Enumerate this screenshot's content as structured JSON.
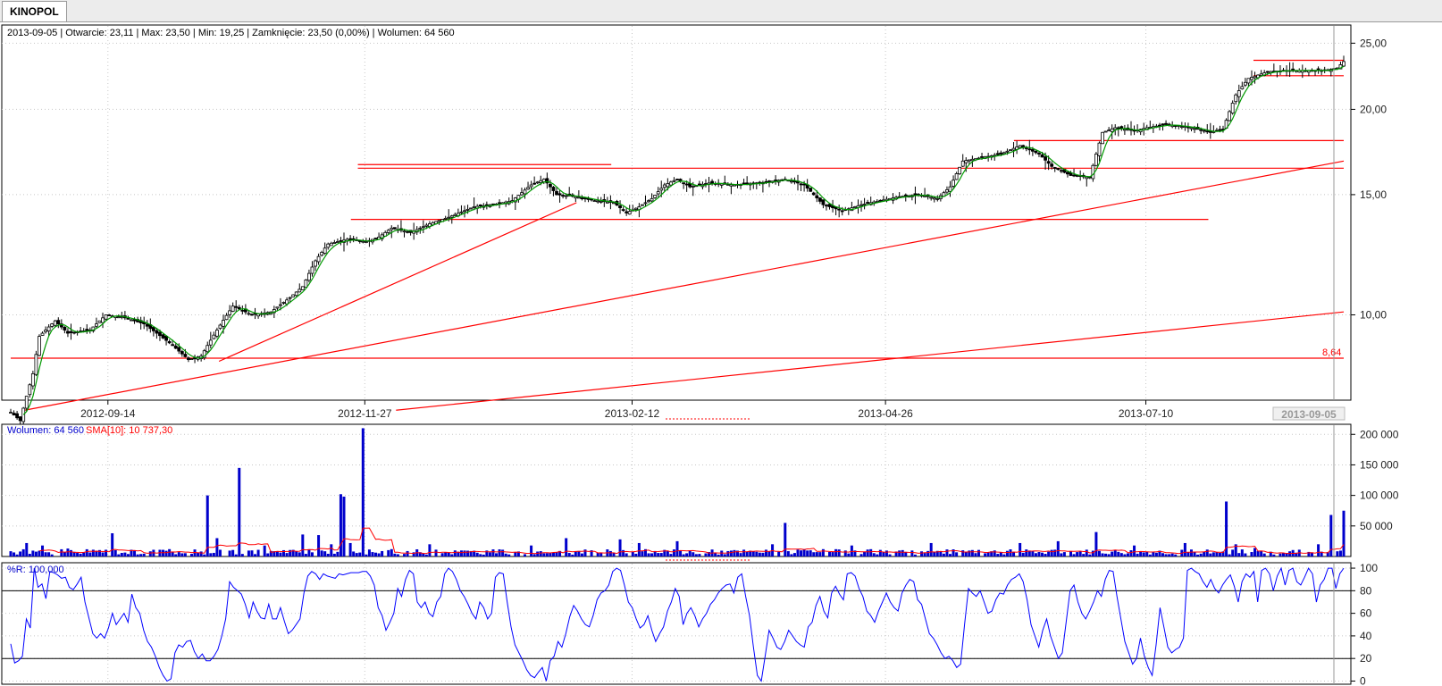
{
  "tab": {
    "label": "KINOPOL"
  },
  "price_panel": {
    "info": "2013-09-05 | Otwarcie: 23,11 | Max: 23,50 | Min: 19,25 | Zamknięcie: 23,50 (0,00%) | Wolumen: 64 560",
    "last_value_label": "8,64",
    "cursor_date_label": "2013-09-05"
  },
  "volume_panel": {
    "label": "Wolumen: 64 560",
    "sma_label": "SMA[10]: 10 737,30"
  },
  "wr_panel": {
    "label": "%R: 100,000"
  },
  "colors": {
    "candle": "#000000",
    "sma_line": "#009900",
    "trendline": "#ff0000",
    "volume_bar": "#0000cc",
    "volume_sma": "#ff0000",
    "wr_line": "#0000ff",
    "grid": "#c8c8c8"
  },
  "chart_data": [
    {
      "type": "candlestick",
      "scale": "log",
      "x_ticks": [
        "2012-09-14",
        "2012-11-27",
        "2013-02-12",
        "2013-04-26",
        "2013-07-10"
      ],
      "y_ticks": [
        "10,00",
        "15,00",
        "20,00",
        "25,00"
      ],
      "y_tick_values": [
        10,
        15,
        20,
        25
      ],
      "ylim": [
        7.5,
        26.5
      ],
      "x_range": [
        "2012-08-17",
        "2013-09-05"
      ],
      "close_anchors": [
        [
          0,
          7.2
        ],
        [
          3,
          7.0
        ],
        [
          7,
          8.2
        ],
        [
          9,
          9.3
        ],
        [
          14,
          9.8
        ],
        [
          18,
          9.4
        ],
        [
          25,
          9.5
        ],
        [
          30,
          10.0
        ],
        [
          36,
          9.9
        ],
        [
          42,
          9.7
        ],
        [
          50,
          9.1
        ],
        [
          56,
          8.6
        ],
        [
          60,
          8.7
        ],
        [
          65,
          9.5
        ],
        [
          70,
          10.3
        ],
        [
          76,
          10.0
        ],
        [
          82,
          10.1
        ],
        [
          88,
          10.6
        ],
        [
          92,
          11.0
        ],
        [
          96,
          12.0
        ],
        [
          100,
          12.7
        ],
        [
          106,
          12.9
        ],
        [
          112,
          12.8
        ],
        [
          116,
          13.0
        ],
        [
          120,
          13.4
        ],
        [
          126,
          13.2
        ],
        [
          132,
          13.6
        ],
        [
          138,
          13.9
        ],
        [
          146,
          14.4
        ],
        [
          152,
          14.5
        ],
        [
          158,
          14.7
        ],
        [
          164,
          15.5
        ],
        [
          168,
          15.8
        ],
        [
          172,
          15.0
        ],
        [
          178,
          14.9
        ],
        [
          184,
          14.7
        ],
        [
          190,
          14.6
        ],
        [
          194,
          14.1
        ],
        [
          198,
          14.4
        ],
        [
          202,
          14.8
        ],
        [
          206,
          15.5
        ],
        [
          210,
          15.8
        ],
        [
          214,
          15.4
        ],
        [
          220,
          15.6
        ],
        [
          228,
          15.5
        ],
        [
          236,
          15.6
        ],
        [
          244,
          15.8
        ],
        [
          250,
          15.5
        ],
        [
          256,
          14.5
        ],
        [
          262,
          14.2
        ],
        [
          268,
          14.5
        ],
        [
          274,
          14.7
        ],
        [
          280,
          14.9
        ],
        [
          286,
          15.0
        ],
        [
          292,
          14.8
        ],
        [
          296,
          15.4
        ],
        [
          300,
          16.8
        ],
        [
          306,
          17.0
        ],
        [
          312,
          17.2
        ],
        [
          318,
          17.7
        ],
        [
          324,
          17.2
        ],
        [
          328,
          16.5
        ],
        [
          334,
          16.0
        ],
        [
          340,
          15.9
        ],
        [
          344,
          18.5
        ],
        [
          348,
          18.8
        ],
        [
          354,
          18.6
        ],
        [
          358,
          18.8
        ],
        [
          364,
          19.0
        ],
        [
          372,
          18.8
        ],
        [
          378,
          18.5
        ],
        [
          382,
          18.7
        ],
        [
          386,
          21.0
        ],
        [
          390,
          22.2
        ],
        [
          396,
          22.7
        ],
        [
          402,
          22.8
        ],
        [
          408,
          22.8
        ],
        [
          414,
          22.8
        ],
        [
          418,
          23.0
        ],
        [
          420,
          23.5
        ]
      ],
      "horizontal_levels": [
        {
          "value": 8.64,
          "from": "2012-08-17",
          "to": "2013-09-05"
        },
        {
          "value": 13.8,
          "from": "2012-11-23",
          "to": "2013-07-28"
        },
        {
          "value": 16.4,
          "from": "2012-11-25",
          "to": "2013-09-05"
        },
        {
          "value": 16.6,
          "from": "2012-11-25",
          "to": "2013-02-06"
        },
        {
          "value": 18.0,
          "from": "2013-06-02",
          "to": "2013-09-05"
        },
        {
          "value": 22.4,
          "from": "2013-08-10",
          "to": "2013-09-05"
        },
        {
          "value": 23.6,
          "from": "2013-08-10",
          "to": "2013-09-05"
        }
      ],
      "trendlines": [
        {
          "from": [
            "2012-08-21",
            7.25
          ],
          "to": [
            "2013-09-05",
            16.8
          ]
        },
        {
          "from": [
            "2012-10-16",
            8.55
          ],
          "to": [
            "2013-01-27",
            14.6
          ]
        },
        {
          "from": [
            "2012-12-06",
            7.25
          ],
          "to": [
            "2013-09-05",
            10.1
          ]
        }
      ]
    },
    {
      "type": "bar",
      "name": "Wolumen",
      "y_ticks": [
        "50 000",
        "100 000",
        "150 000",
        "200 000"
      ],
      "y_tick_values": [
        50000,
        100000,
        150000,
        200000
      ],
      "ylim": [
        0,
        215000
      ],
      "spikes": [
        [
          5,
          22000
        ],
        [
          10,
          18000
        ],
        [
          18,
          13000
        ],
        [
          32,
          38000
        ],
        [
          50,
          12000
        ],
        [
          62,
          100000
        ],
        [
          65,
          30000
        ],
        [
          72,
          145000
        ],
        [
          80,
          18000
        ],
        [
          92,
          36000
        ],
        [
          97,
          35000
        ],
        [
          101,
          20000
        ],
        [
          104,
          102000
        ],
        [
          105,
          98000
        ],
        [
          107,
          22000
        ],
        [
          111,
          210000
        ],
        [
          120,
          12000
        ],
        [
          132,
          20000
        ],
        [
          164,
          18000
        ],
        [
          175,
          30000
        ],
        [
          192,
          28000
        ],
        [
          198,
          22000
        ],
        [
          210,
          25000
        ],
        [
          240,
          20000
        ],
        [
          244,
          55000
        ],
        [
          265,
          18000
        ],
        [
          290,
          22000
        ],
        [
          318,
          22000
        ],
        [
          330,
          25000
        ],
        [
          342,
          40000
        ],
        [
          354,
          18000
        ],
        [
          370,
          22000
        ],
        [
          383,
          90000
        ],
        [
          386,
          20000
        ],
        [
          392,
          14000
        ],
        [
          412,
          20000
        ],
        [
          416,
          68000
        ],
        [
          420,
          75000
        ]
      ],
      "sma": {
        "name": "SMA[10]"
      }
    },
    {
      "type": "line",
      "name": "%R",
      "y_ticks": [
        "0",
        "20",
        "40",
        "60",
        "80",
        "100"
      ],
      "y_tick_values": [
        0,
        20,
        40,
        60,
        80,
        100
      ],
      "ylim": [
        -2,
        104
      ],
      "reference_lines": [
        20,
        80
      ],
      "values": [
        33,
        16,
        18,
        22,
        55,
        47,
        100,
        83,
        86,
        73,
        97,
        96,
        94,
        91,
        92,
        83,
        81,
        86,
        92,
        70,
        56,
        42,
        38,
        42,
        38,
        47,
        60,
        50,
        55,
        60,
        52,
        77,
        65,
        60,
        45,
        35,
        30,
        22,
        12,
        5,
        0,
        2,
        25,
        32,
        30,
        35,
        36,
        26,
        20,
        24,
        18,
        18,
        22,
        28,
        40,
        55,
        88,
        83,
        80,
        77,
        68,
        56,
        70,
        62,
        56,
        55,
        68,
        55,
        55,
        65,
        53,
        42,
        45,
        50,
        55,
        78,
        93,
        97,
        95,
        90,
        95,
        93,
        92,
        91,
        95,
        94,
        95,
        96,
        96,
        96,
        97,
        97,
        93,
        85,
        65,
        58,
        45,
        52,
        60,
        82,
        75,
        90,
        98,
        95,
        70,
        65,
        70,
        60,
        57,
        70,
        75,
        95,
        100,
        97,
        90,
        80,
        75,
        68,
        60,
        55,
        70,
        65,
        55,
        60,
        92,
        96,
        95,
        70,
        48,
        32,
        25,
        18,
        10,
        5,
        3,
        8,
        12,
        0,
        18,
        22,
        35,
        30,
        42,
        57,
        67,
        62,
        55,
        50,
        48,
        58,
        72,
        78,
        80,
        85,
        97,
        100,
        98,
        85,
        70,
        65,
        55,
        47,
        50,
        58,
        45,
        35,
        42,
        48,
        62,
        70,
        82,
        75,
        50,
        60,
        65,
        58,
        48,
        55,
        60,
        68,
        72,
        78,
        82,
        85,
        86,
        78,
        92,
        95,
        75,
        58,
        30,
        5,
        0,
        22,
        45,
        38,
        30,
        28,
        35,
        45,
        40,
        35,
        32,
        30,
        48,
        52,
        67,
        75,
        62,
        56,
        78,
        84,
        77,
        72,
        95,
        96,
        93,
        82,
        75,
        62,
        58,
        52,
        62,
        70,
        78,
        70,
        65,
        62,
        78,
        85,
        90,
        88,
        72,
        68,
        55,
        42,
        38,
        32,
        25,
        20,
        22,
        18,
        12,
        15,
        50,
        82,
        78,
        75,
        80,
        70,
        60,
        62,
        72,
        78,
        77,
        85,
        90,
        92,
        95,
        88,
        72,
        50,
        40,
        30,
        45,
        55,
        40,
        30,
        20,
        25,
        52,
        80,
        85,
        70,
        60,
        55,
        62,
        70,
        80,
        75,
        90,
        98,
        97,
        75,
        55,
        35,
        25,
        15,
        20,
        38,
        22,
        12,
        5,
        32,
        65,
        48,
        30,
        25,
        28,
        30,
        38,
        98,
        100,
        97,
        95,
        88,
        83,
        90,
        82,
        78,
        85,
        90,
        94,
        84,
        70,
        88,
        95,
        92,
        97,
        70,
        98,
        100,
        95,
        80,
        93,
        100,
        85,
        98,
        100,
        88,
        85,
        92,
        100,
        95,
        70,
        85,
        90,
        100,
        100,
        82,
        95,
        100
      ]
    }
  ]
}
